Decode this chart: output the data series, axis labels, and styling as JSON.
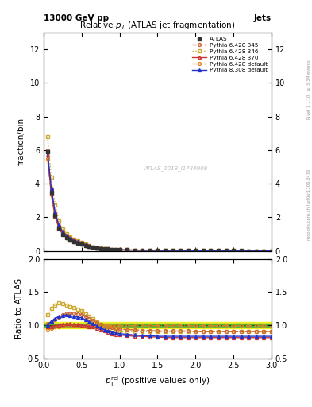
{
  "title": "Relative $p_T$ (ATLAS jet fragmentation)",
  "header_left": "13000 GeV pp",
  "header_right": "Jets",
  "watermark": "ATLAS_2019_I1740909",
  "ylabel_main": "fraction/bin",
  "ylabel_ratio": "Ratio to ATLAS",
  "xlabel": "$p_{\\mathrm{T}}^{\\mathrm{rel}}$ (positive values only)",
  "right_label": "mcplots.cern.ch [arXiv:1306.3436]",
  "right_label2": "Rivet 3.1.10, $\\geq$ 3.3M events",
  "xlim": [
    0,
    3
  ],
  "ylim_main": [
    0,
    13
  ],
  "ylim_ratio": [
    0.5,
    2
  ],
  "x_data": [
    0.05,
    0.1,
    0.15,
    0.2,
    0.25,
    0.3,
    0.35,
    0.4,
    0.45,
    0.5,
    0.55,
    0.6,
    0.65,
    0.7,
    0.75,
    0.8,
    0.85,
    0.9,
    0.95,
    1.0,
    1.1,
    1.2,
    1.3,
    1.4,
    1.5,
    1.6,
    1.7,
    1.8,
    1.9,
    2.0,
    2.1,
    2.2,
    2.3,
    2.4,
    2.5,
    2.6,
    2.7,
    2.8,
    2.9,
    3.0
  ],
  "atlas_y": [
    5.9,
    3.5,
    2.1,
    1.35,
    1.0,
    0.8,
    0.65,
    0.55,
    0.48,
    0.42,
    0.34,
    0.27,
    0.22,
    0.18,
    0.15,
    0.13,
    0.11,
    0.095,
    0.083,
    0.072,
    0.063,
    0.056,
    0.049,
    0.043,
    0.038,
    0.034,
    0.03,
    0.026,
    0.023,
    0.02,
    0.018,
    0.016,
    0.014,
    0.012,
    0.011,
    0.01,
    0.009,
    0.008,
    0.007,
    0.006
  ],
  "atlas_err": [
    0.12,
    0.06,
    0.04,
    0.025,
    0.018,
    0.014,
    0.011,
    0.009,
    0.008,
    0.007,
    0.006,
    0.005,
    0.004,
    0.003,
    0.003,
    0.003,
    0.002,
    0.002,
    0.002,
    0.002,
    0.002,
    0.002,
    0.002,
    0.002,
    0.002,
    0.002,
    0.002,
    0.002,
    0.002,
    0.002,
    0.002,
    0.002,
    0.002,
    0.002,
    0.002,
    0.002,
    0.002,
    0.002,
    0.002,
    0.002
  ],
  "pythia_345_ratio": [
    1.02,
    1.05,
    1.08,
    1.12,
    1.15,
    1.18,
    1.18,
    1.18,
    1.17,
    1.16,
    1.13,
    1.1,
    1.07,
    1.04,
    1.01,
    0.99,
    0.97,
    0.96,
    0.95,
    0.94,
    0.93,
    0.93,
    0.92,
    0.92,
    0.91,
    0.91,
    0.91,
    0.91,
    0.91,
    0.9,
    0.9,
    0.9,
    0.9,
    0.9,
    0.9,
    0.9,
    0.9,
    0.9,
    0.9,
    0.9
  ],
  "pythia_346_ratio": [
    1.15,
    1.25,
    1.3,
    1.33,
    1.32,
    1.3,
    1.28,
    1.26,
    1.24,
    1.22,
    1.17,
    1.13,
    1.09,
    1.05,
    1.01,
    0.98,
    0.95,
    0.93,
    0.91,
    0.9,
    0.9,
    0.9,
    0.9,
    0.9,
    0.9,
    0.9,
    0.9,
    0.9,
    0.9,
    0.9,
    0.9,
    0.9,
    0.9,
    0.9,
    0.9,
    0.9,
    0.9,
    0.9,
    0.9,
    0.9
  ],
  "pythia_370_ratio": [
    0.97,
    0.98,
    0.99,
    1.0,
    1.01,
    1.02,
    1.02,
    1.01,
    1.01,
    1.0,
    0.99,
    0.98,
    0.97,
    0.95,
    0.93,
    0.91,
    0.89,
    0.87,
    0.86,
    0.85,
    0.84,
    0.83,
    0.83,
    0.82,
    0.82,
    0.81,
    0.81,
    0.81,
    0.81,
    0.81,
    0.81,
    0.81,
    0.81,
    0.81,
    0.81,
    0.81,
    0.81,
    0.81,
    0.81,
    0.81
  ],
  "pythia_default_ratio": [
    0.93,
    0.95,
    0.97,
    0.98,
    0.99,
    0.99,
    0.99,
    0.99,
    0.99,
    0.99,
    0.99,
    0.99,
    0.99,
    0.99,
    0.99,
    0.99,
    0.99,
    0.99,
    0.99,
    0.99,
    0.99,
    0.99,
    0.99,
    0.99,
    0.99,
    0.99,
    0.99,
    0.99,
    0.99,
    0.99,
    0.99,
    0.99,
    0.99,
    0.99,
    0.99,
    0.99,
    0.99,
    0.99,
    0.99,
    0.99
  ],
  "pythia8_ratio": [
    1.0,
    1.06,
    1.1,
    1.13,
    1.14,
    1.15,
    1.14,
    1.13,
    1.12,
    1.11,
    1.08,
    1.05,
    1.02,
    0.99,
    0.96,
    0.93,
    0.91,
    0.89,
    0.88,
    0.87,
    0.86,
    0.85,
    0.84,
    0.84,
    0.83,
    0.83,
    0.83,
    0.83,
    0.83,
    0.83,
    0.83,
    0.83,
    0.83,
    0.83,
    0.83,
    0.83,
    0.83,
    0.83,
    0.83,
    0.83
  ],
  "color_345": "#cc6633",
  "color_346": "#ccaa33",
  "color_370": "#cc3333",
  "color_default": "#dd8822",
  "color_p8": "#2233cc",
  "color_atlas": "#333333",
  "band_yellow": "#eeee00",
  "band_green": "#44bb44",
  "yticks_main": [
    0,
    2,
    4,
    6,
    8,
    10,
    12
  ],
  "yticks_ratio": [
    0.5,
    1.0,
    1.5,
    2.0
  ]
}
